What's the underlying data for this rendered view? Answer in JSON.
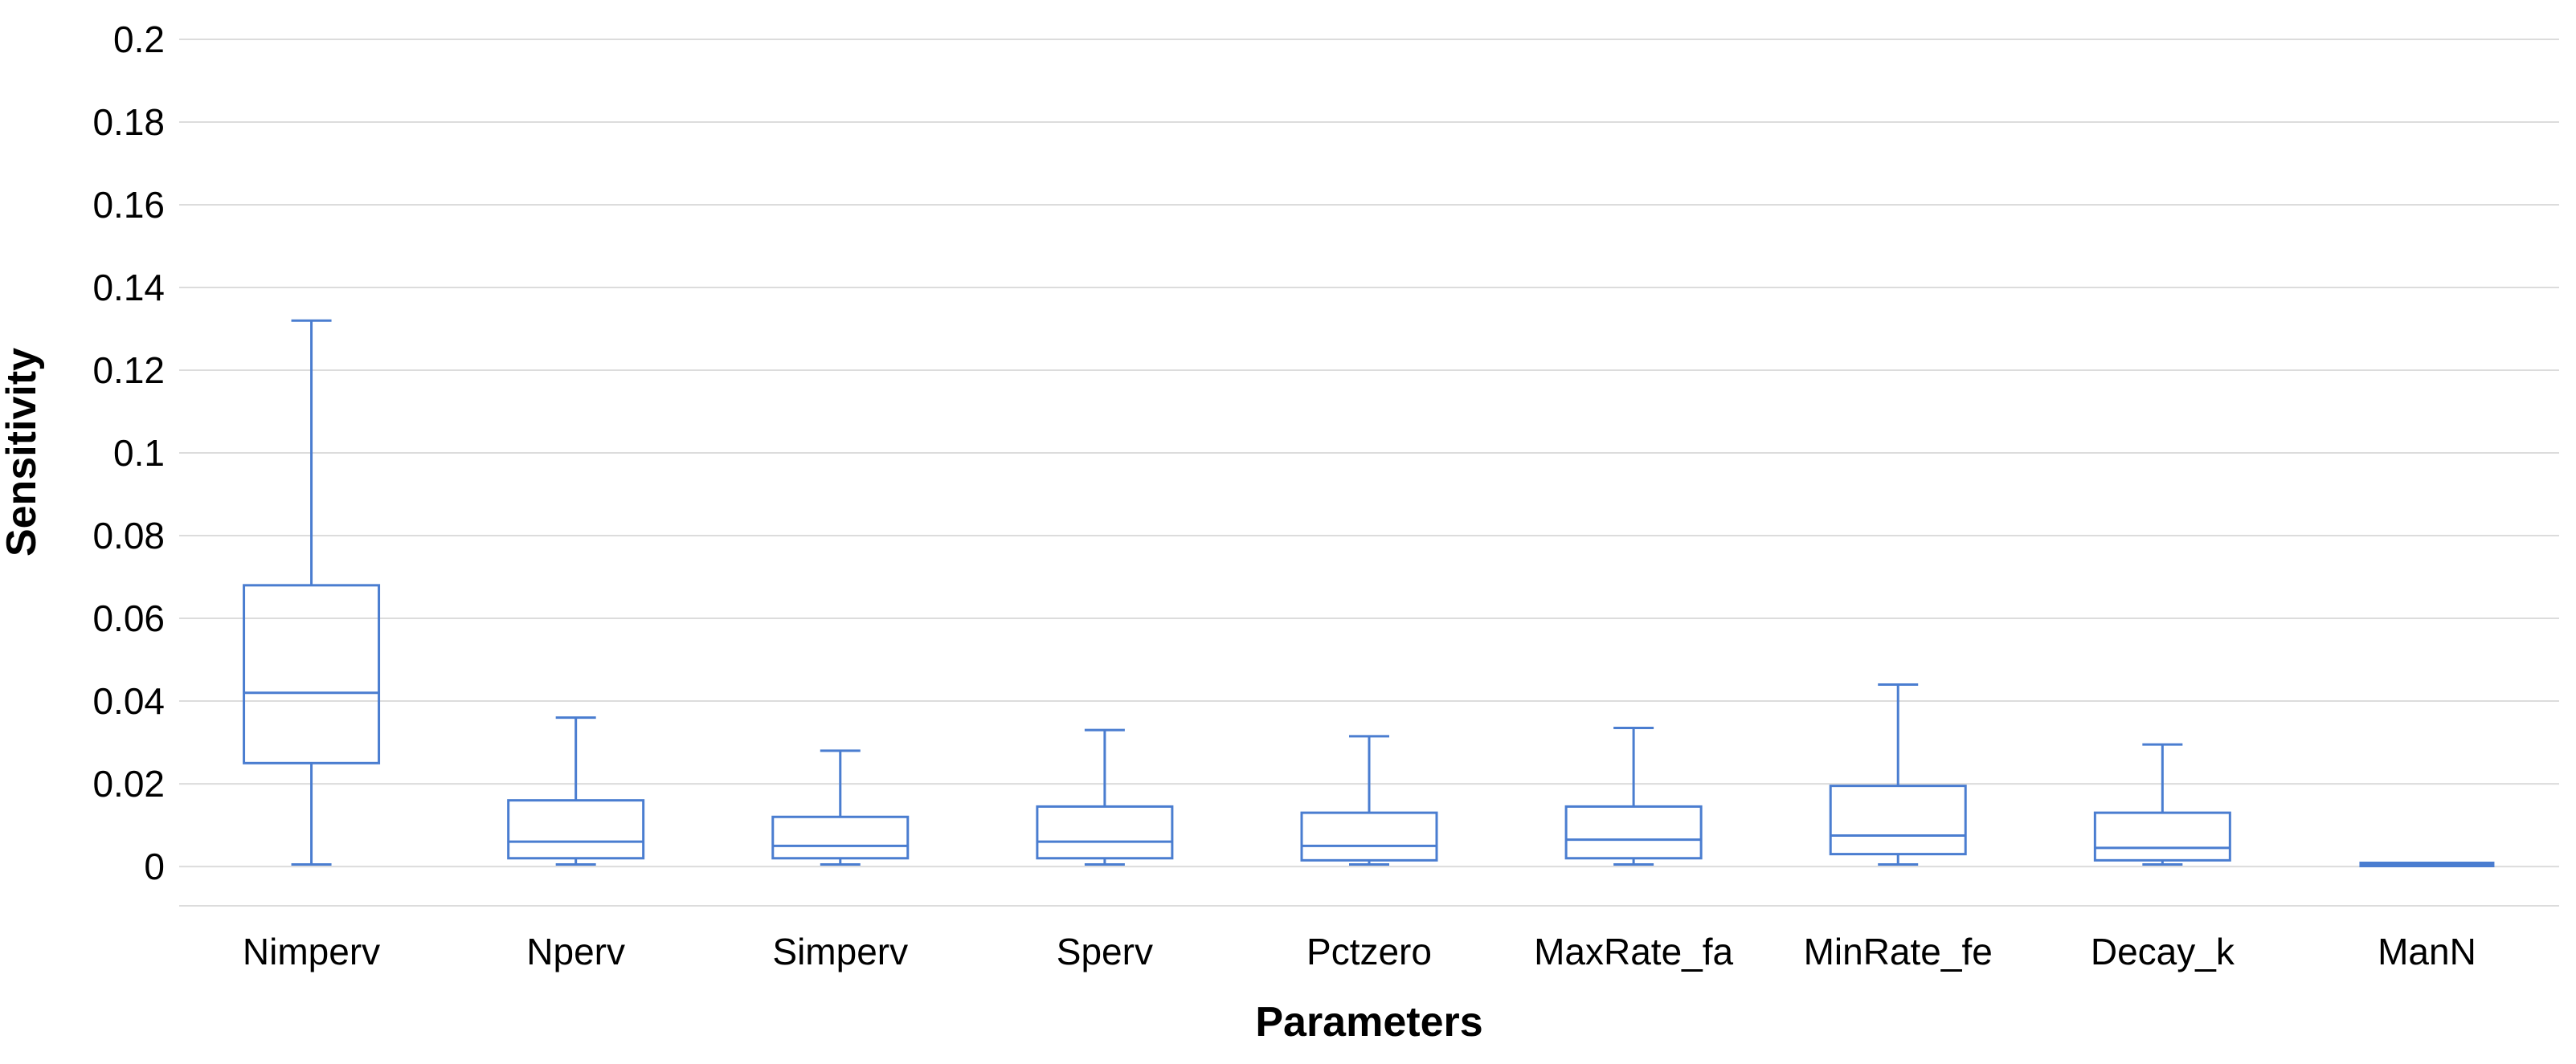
{
  "chart_data": {
    "type": "box",
    "title": "",
    "xlabel": "Parameters",
    "ylabel": "Sensitivity",
    "categories": [
      "Nimperv",
      "Nperv",
      "Simperv",
      "Sperv",
      "Pctzero",
      "MaxRate_fa",
      "MinRate_fe",
      "Decay_k",
      "ManN"
    ],
    "boxes": [
      {
        "category": "Nimperv",
        "min": 0.0005,
        "q1": 0.025,
        "median": 0.042,
        "q3": 0.068,
        "max": 0.132
      },
      {
        "category": "Nperv",
        "min": 0.0005,
        "q1": 0.002,
        "median": 0.006,
        "q3": 0.016,
        "max": 0.036
      },
      {
        "category": "Simperv",
        "min": 0.0005,
        "q1": 0.002,
        "median": 0.005,
        "q3": 0.012,
        "max": 0.028
      },
      {
        "category": "Sperv",
        "min": 0.0005,
        "q1": 0.002,
        "median": 0.006,
        "q3": 0.0145,
        "max": 0.033
      },
      {
        "category": "Pctzero",
        "min": 0.0005,
        "q1": 0.0015,
        "median": 0.005,
        "q3": 0.013,
        "max": 0.0315
      },
      {
        "category": "MaxRate_fa",
        "min": 0.0005,
        "q1": 0.002,
        "median": 0.0065,
        "q3": 0.0145,
        "max": 0.0335
      },
      {
        "category": "MinRate_fe",
        "min": 0.0005,
        "q1": 0.003,
        "median": 0.0075,
        "q3": 0.0195,
        "max": 0.044
      },
      {
        "category": "Decay_k",
        "min": 0.0005,
        "q1": 0.0015,
        "median": 0.0045,
        "q3": 0.013,
        "max": 0.0295
      },
      {
        "category": "ManN",
        "min": 0.0003,
        "q1": 0.0003,
        "median": 0.0005,
        "q3": 0.0008,
        "max": 0.0008
      }
    ],
    "ylim": [
      -0.0095,
      0.2
    ],
    "yticks": [
      {
        "value": 0,
        "label": "0"
      },
      {
        "value": 0.02,
        "label": "0.02"
      },
      {
        "value": 0.04,
        "label": "0.04"
      },
      {
        "value": 0.06,
        "label": "0.06"
      },
      {
        "value": 0.08,
        "label": "0.08"
      },
      {
        "value": 0.1,
        "label": "0.1"
      },
      {
        "value": 0.12,
        "label": "0.12"
      },
      {
        "value": 0.14,
        "label": "0.14"
      },
      {
        "value": 0.16,
        "label": "0.16"
      },
      {
        "value": 0.18,
        "label": "0.18"
      },
      {
        "value": 0.2,
        "label": "0.2"
      }
    ],
    "grid": "horizontal-only",
    "legend": "none",
    "colors": {
      "box_stroke": "#4a7dd0",
      "gridline": "#dcdcdc",
      "text": "#000000",
      "background": "#ffffff"
    }
  }
}
